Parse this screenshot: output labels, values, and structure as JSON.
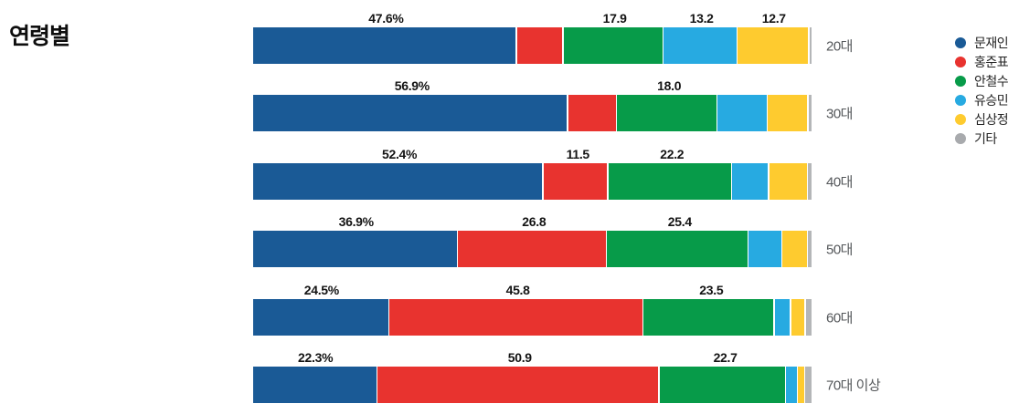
{
  "title": "연령별",
  "chart_data": {
    "type": "bar",
    "stacked": true,
    "orientation": "horizontal",
    "unit": "%",
    "xlim": [
      0,
      100
    ],
    "grid": false,
    "legend_position": "top-right",
    "categories": [
      "20대",
      "30대",
      "40대",
      "50대",
      "60대",
      "70대 이상"
    ],
    "series": [
      {
        "name": "문재인",
        "color": "#1a5a96",
        "values": [
          47.6,
          56.9,
          52.4,
          36.9,
          24.5,
          22.3
        ]
      },
      {
        "name": "홍준표",
        "color": "#e8332f",
        "values": [
          8.2,
          8.6,
          11.5,
          26.8,
          45.8,
          50.9
        ]
      },
      {
        "name": "안철수",
        "color": "#079b49",
        "values": [
          17.9,
          18.0,
          22.2,
          25.4,
          23.5,
          22.7
        ]
      },
      {
        "name": "유승민",
        "color": "#27aae1",
        "values": [
          13.2,
          8.8,
          6.5,
          5.9,
          2.8,
          1.9
        ]
      },
      {
        "name": "심상정",
        "color": "#fecb2f",
        "values": [
          12.7,
          7.2,
          6.8,
          4.4,
          2.4,
          1.1
        ]
      },
      {
        "name": "기타",
        "color": "#b4b6b8",
        "values": [
          0.4,
          0.5,
          0.6,
          0.6,
          1.0,
          1.1
        ]
      }
    ],
    "visible_value_labels": [
      [
        "47.6%",
        null,
        "17.9",
        "13.2",
        "12.7",
        null
      ],
      [
        "56.9%",
        null,
        "18.0",
        null,
        null,
        null
      ],
      [
        "52.4%",
        "11.5",
        "22.2",
        null,
        null,
        null
      ],
      [
        "36.9%",
        "26.8",
        "25.4",
        null,
        null,
        null
      ],
      [
        "24.5%",
        "45.8",
        "23.5",
        null,
        null,
        null
      ],
      [
        "22.3%",
        "50.9",
        "22.7",
        null,
        null,
        null
      ]
    ],
    "legend": [
      {
        "label": "문재인",
        "color": "#1a5a96"
      },
      {
        "label": "홍준표",
        "color": "#e8332f"
      },
      {
        "label": "안철수",
        "color": "#079b49"
      },
      {
        "label": "유승민",
        "color": "#27aae1"
      },
      {
        "label": "심상정",
        "color": "#fecb2f"
      },
      {
        "label": "기타",
        "color": "#a8aaad"
      }
    ]
  }
}
